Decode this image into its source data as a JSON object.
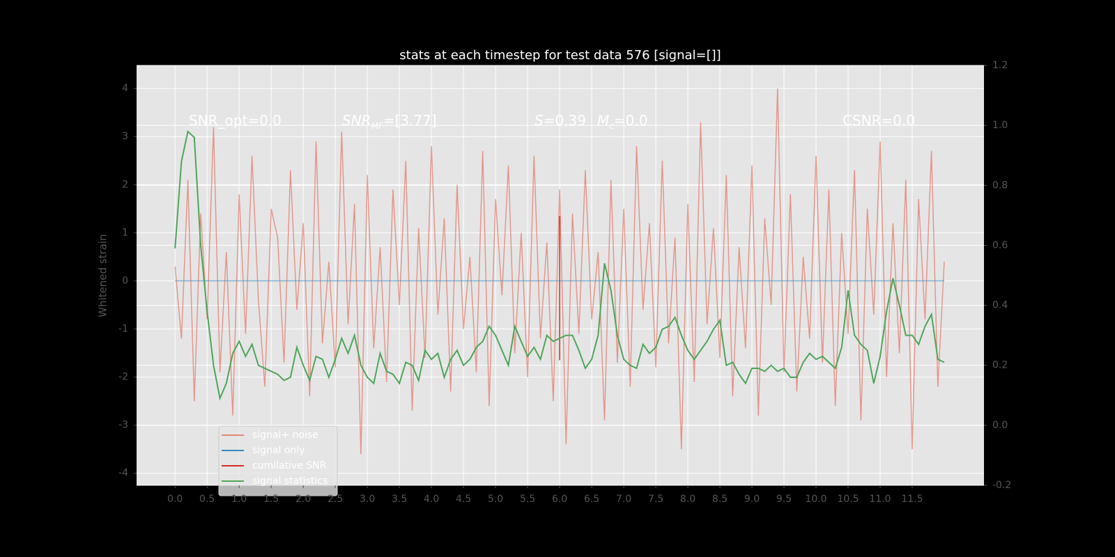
{
  "chart_data": {
    "type": "line",
    "title": "stats at each timestep for test data 576 [signal=[]]",
    "y_label": "Whitened strain",
    "annotations": [
      [
        "SNR_opt=0.0"
      ],
      [
        "SNR",
        "MF",
        "=[3.77]"
      ],
      [
        "S",
        "=0.39",
        "M",
        "c",
        "=0.0"
      ],
      [
        "CSNR=0.0"
      ]
    ],
    "xlim": [
      -0.6,
      12.62
    ],
    "ylim": [
      -4.25,
      4.48
    ],
    "y2lim": [
      -0.2,
      1.2
    ],
    "grid": true,
    "legend": "lower left",
    "xticks": [
      {
        "value": 0,
        "label": "0.0"
      },
      0.5,
      {
        "value": 1,
        "label": "1.0"
      },
      1.5,
      {
        "value": 2,
        "label": "2.0"
      },
      2.5,
      {
        "value": 3,
        "label": "3.0"
      },
      3.5,
      {
        "value": 4,
        "label": "4.0"
      },
      4.5,
      {
        "value": 5,
        "label": "5.0"
      },
      5.5,
      {
        "value": 6,
        "label": "6.0"
      },
      6.5,
      {
        "value": 7,
        "label": "7.0"
      },
      7.5,
      {
        "value": 8,
        "label": "8.0"
      },
      8.5,
      {
        "value": 9,
        "label": "9.0"
      },
      9.5,
      {
        "value": 10,
        "label": "10.0"
      },
      10.5,
      {
        "value": 11,
        "label": "11.0"
      },
      11.5
    ],
    "yticks": [
      -4,
      -3,
      -2,
      -1,
      0,
      1,
      2,
      3,
      4
    ],
    "y2ticks": [
      -0.2,
      {
        "value": 0,
        "label": "0.0"
      },
      0.2,
      0.4,
      0.6,
      0.8,
      {
        "value": 1,
        "label": "1.0"
      },
      1.2
    ],
    "x": [
      0.0,
      0.1,
      0.2,
      0.3,
      0.4,
      0.5,
      0.6,
      0.7,
      0.8,
      0.9,
      1.0,
      1.1,
      1.2,
      1.3,
      1.4,
      1.5,
      1.6,
      1.7,
      1.8,
      1.9,
      2.0,
      2.1,
      2.2,
      2.3,
      2.4,
      2.5,
      2.6,
      2.7,
      2.8,
      2.9,
      3.0,
      3.1,
      3.2,
      3.3,
      3.4,
      3.5,
      3.6,
      3.7,
      3.8,
      3.9,
      4.0,
      4.1,
      4.2,
      4.3,
      4.4,
      4.5,
      4.6,
      4.7,
      4.8,
      4.9,
      5.0,
      5.1,
      5.2,
      5.3,
      5.4,
      5.5,
      5.6,
      5.7,
      5.8,
      5.9,
      6.0,
      6.1,
      6.2,
      6.3,
      6.4,
      6.5,
      6.6,
      6.7,
      6.8,
      6.9,
      7.0,
      7.1,
      7.2,
      7.3,
      7.4,
      7.5,
      7.6,
      7.7,
      7.8,
      7.9,
      8.0,
      8.1,
      8.2,
      8.3,
      8.4,
      8.5,
      8.6,
      8.7,
      8.8,
      8.9,
      9.0,
      9.1,
      9.2,
      9.3,
      9.4,
      9.5,
      9.6,
      9.7,
      9.8,
      9.9,
      10.0,
      10.1,
      10.2,
      10.3,
      10.4,
      10.5,
      10.6,
      10.7,
      10.8,
      10.9,
      11.0,
      11.1,
      11.2,
      11.3,
      11.4,
      11.5,
      11.6,
      11.7,
      11.8,
      11.9,
      12.0
    ],
    "series": [
      {
        "name": "signal+ noise",
        "color": "#E24A33",
        "axis": "y",
        "values": [
          0.3,
          -1.2,
          2.1,
          -2.5,
          1.4,
          -0.8,
          3.2,
          -1.9,
          0.6,
          -2.8,
          1.8,
          -1.1,
          2.6,
          -0.4,
          -2.2,
          1.5,
          0.9,
          -1.7,
          2.3,
          -0.6,
          1.2,
          -2.4,
          2.9,
          -1.3,
          0.4,
          -1.8,
          3.1,
          -0.9,
          1.6,
          -3.6,
          2.2,
          -1.4,
          0.7,
          -2.1,
          1.9,
          -0.5,
          2.5,
          -2.7,
          1.1,
          -1.6,
          2.8,
          -0.7,
          1.3,
          -2.3,
          2.0,
          -1.0,
          0.5,
          -1.9,
          2.7,
          -2.6,
          1.7,
          -0.3,
          2.4,
          -1.5,
          1.0,
          -2.0,
          2.6,
          -1.2,
          0.8,
          -2.5,
          1.9,
          -3.4,
          1.4,
          -1.1,
          2.3,
          -0.8,
          0.6,
          -2.9,
          2.1,
          -1.7,
          1.5,
          -2.2,
          2.8,
          -0.6,
          1.2,
          -1.8,
          2.5,
          -1.3,
          0.9,
          -3.5,
          1.6,
          -2.1,
          3.3,
          -0.9,
          1.1,
          -1.6,
          2.2,
          -2.4,
          0.7,
          -1.4,
          2.4,
          -2.8,
          1.3,
          -0.5,
          4.0,
          -1.9,
          1.8,
          -2.3,
          0.5,
          -1.2,
          2.6,
          -1.7,
          1.9,
          -2.6,
          1.0,
          -1.1,
          2.3,
          -2.9,
          1.5,
          -0.7,
          2.9,
          -2.0,
          1.2,
          -1.5,
          2.1,
          -3.5,
          1.7,
          -0.8,
          2.7,
          -2.2,
          0.4
        ]
      },
      {
        "name": "signal only",
        "color": "#348ABD",
        "axis": "y",
        "x": [
          0.0,
          12.0
        ],
        "values": [
          0,
          0
        ]
      },
      {
        "name": "cumilative SNR",
        "color": "#D62D20",
        "axis": "y",
        "x": [
          6.0,
          6.0
        ],
        "values": [
          1.35,
          -1.65
        ]
      },
      {
        "name": "signal statistics",
        "color": "#4FA55A",
        "axis": "y2",
        "values": [
          0.59,
          0.88,
          0.98,
          0.96,
          0.6,
          0.38,
          0.2,
          0.09,
          0.14,
          0.24,
          0.28,
          0.23,
          0.27,
          0.2,
          0.19,
          0.18,
          0.17,
          0.15,
          0.16,
          0.26,
          0.2,
          0.15,
          0.23,
          0.22,
          0.16,
          0.22,
          0.29,
          0.24,
          0.3,
          0.2,
          0.16,
          0.14,
          0.24,
          0.18,
          0.17,
          0.14,
          0.21,
          0.2,
          0.15,
          0.25,
          0.22,
          0.24,
          0.16,
          0.22,
          0.25,
          0.2,
          0.22,
          0.26,
          0.28,
          0.33,
          0.3,
          0.25,
          0.2,
          0.33,
          0.28,
          0.23,
          0.26,
          0.22,
          0.3,
          0.28,
          0.29,
          0.3,
          0.3,
          0.25,
          0.19,
          0.22,
          0.3,
          0.54,
          0.45,
          0.3,
          0.22,
          0.2,
          0.19,
          0.27,
          0.24,
          0.26,
          0.32,
          0.33,
          0.36,
          0.3,
          0.25,
          0.22,
          0.25,
          0.28,
          0.32,
          0.35,
          0.2,
          0.21,
          0.17,
          0.14,
          0.19,
          0.19,
          0.18,
          0.2,
          0.18,
          0.19,
          0.16,
          0.16,
          0.21,
          0.24,
          0.22,
          0.23,
          0.21,
          0.19,
          0.26,
          0.45,
          0.3,
          0.27,
          0.25,
          0.14,
          0.23,
          0.38,
          0.49,
          0.4,
          0.3,
          0.3,
          0.27,
          0.33,
          0.37,
          0.22,
          0.21
        ]
      }
    ]
  }
}
